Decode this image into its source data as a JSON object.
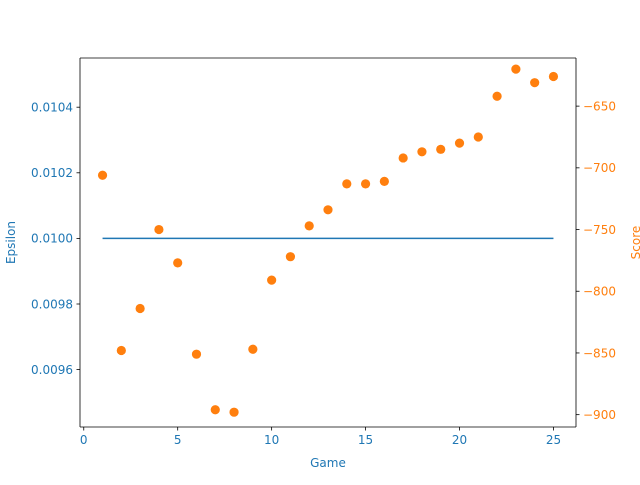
{
  "chart_data": {
    "type": "line+scatter",
    "xlabel": "Game",
    "x_axis": {
      "range": [
        -0.2,
        26.2
      ],
      "ticks": [
        0,
        5,
        10,
        15,
        20,
        25
      ]
    },
    "left_axis": {
      "label": "Epsilon",
      "color": "#1f77b4",
      "range": [
        0.009425,
        0.01055
      ],
      "ticks": [
        0.0096,
        0.0098,
        0.01,
        0.0102,
        0.0104
      ],
      "tick_labels": [
        "0.0096",
        "0.0098",
        "0.0100",
        "0.0102",
        "0.0104"
      ]
    },
    "right_axis": {
      "label": "Score",
      "color": "#ff7f0e",
      "range": [
        -910,
        -611
      ],
      "ticks": [
        -900,
        -850,
        -800,
        -750,
        -700,
        -650
      ],
      "tick_labels": [
        "−900",
        "−850",
        "−800",
        "−750",
        "−700",
        "−650"
      ]
    },
    "series": [
      {
        "axis": "left",
        "kind": "line",
        "color": "#1f77b4",
        "x": [
          1,
          25
        ],
        "y": [
          0.01,
          0.01
        ]
      },
      {
        "axis": "right",
        "kind": "scatter",
        "color": "#ff7f0e",
        "x": [
          1,
          2,
          3,
          4,
          5,
          6,
          7,
          8,
          9,
          10,
          11,
          12,
          13,
          14,
          15,
          16,
          17,
          18,
          19,
          20,
          21,
          22,
          23,
          24,
          25
        ],
        "y": [
          -706,
          -848,
          -814,
          -750,
          -777,
          -851,
          -896,
          -898,
          -847,
          -791,
          -772,
          -747,
          -734,
          -713,
          -713,
          -711,
          -692,
          -687,
          -685,
          -680,
          -675,
          -642,
          -620,
          -631,
          -626
        ]
      }
    ],
    "grid": false
  }
}
